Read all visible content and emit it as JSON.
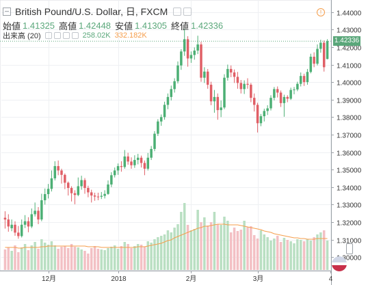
{
  "header": {
    "title": "British Pound/U.S. Dollar, 日, FXCM",
    "ohlc": [
      {
        "label": "始値",
        "value": "1.41325"
      },
      {
        "label": "高値",
        "value": "1.42448"
      },
      {
        "label": "安値",
        "value": "1.41305"
      },
      {
        "label": "終値",
        "value": "1.42336"
      }
    ],
    "volume_label": "出来高 (20)",
    "volume_value": "258.02K",
    "volume_ma_value": "332.182K",
    "alert_icon": "exclamation-circle-icon"
  },
  "last_price_label": "1.42336",
  "colors": {
    "up": "#4caf74",
    "down": "#e05f66",
    "vol_up": "#b9dfc2",
    "vol_down": "#f3c0c4",
    "vol_ma": "#f59d4a",
    "price_line": "#5aa77a",
    "grid": "#eef0f3",
    "axis_text": "#333333",
    "label_green": "#5aa77a",
    "label_orange": "#f59d4a"
  },
  "chart_data": {
    "type": "candlestick",
    "title": "British Pound/U.S. Dollar, 日, FXCM",
    "ylim": [
      1.295,
      1.443
    ],
    "y_ticks": [
      "1.44000",
      "1.43000",
      "1.42000",
      "1.41000",
      "1.40000",
      "1.39000",
      "1.38000",
      "1.37000",
      "1.36000",
      "1.35000",
      "1.34000",
      "1.33000",
      "1.32000",
      "1.31000",
      "1.30000"
    ],
    "y_tick_values": [
      1.44,
      1.43,
      1.42,
      1.41,
      1.4,
      1.39,
      1.38,
      1.37,
      1.36,
      1.35,
      1.34,
      1.33,
      1.32,
      1.31,
      1.3
    ],
    "x_labels": [
      {
        "index": 13,
        "text": "12月"
      },
      {
        "index": 34,
        "text": "2018"
      },
      {
        "index": 56,
        "text": "2月"
      },
      {
        "index": 76,
        "text": "3月"
      },
      {
        "index": 98,
        "text": "4"
      }
    ],
    "closes": [
      1.3215,
      1.3175,
      1.3185,
      1.314,
      1.312,
      1.3185,
      1.3205,
      1.3175,
      1.3245,
      1.3265,
      1.3215,
      1.3325,
      1.336,
      1.339,
      1.345,
      1.352,
      1.3495,
      1.347,
      1.3425,
      1.3395,
      1.3365,
      1.3355,
      1.3405,
      1.344,
      1.3395,
      1.337,
      1.3352,
      1.3346,
      1.3345,
      1.335,
      1.3361,
      1.3415,
      1.3468,
      1.3495,
      1.352,
      1.3515,
      1.3575,
      1.3546,
      1.3525,
      1.3555,
      1.3568,
      1.3538,
      1.3505,
      1.3568,
      1.3618,
      1.3705,
      1.3775,
      1.38,
      1.387,
      1.3915,
      1.396,
      1.4005,
      1.4095,
      1.4175,
      1.4245,
      1.4135,
      1.4155,
      1.418,
      1.4215,
      1.4025,
      1.406,
      1.3985,
      1.389,
      1.3915,
      1.384,
      1.3855,
      1.4025,
      1.4075,
      1.4055,
      1.403,
      1.3995,
      1.396,
      1.399,
      1.3985,
      1.391,
      1.387,
      1.3765,
      1.3805,
      1.3835,
      1.385,
      1.391,
      1.396,
      1.394,
      1.388,
      1.3915,
      1.3905,
      1.3955,
      1.3958,
      1.399,
      1.4035,
      1.4,
      1.4058,
      1.4145,
      1.4105,
      1.419,
      1.4225,
      1.4085,
      1.4234
    ],
    "candles": [
      {
        "o": 1.3225,
        "h": 1.3262,
        "l": 1.3163,
        "c": 1.3215
      },
      {
        "o": 1.3215,
        "h": 1.3245,
        "l": 1.3145,
        "c": 1.3175
      },
      {
        "o": 1.3165,
        "h": 1.3215,
        "l": 1.3148,
        "c": 1.3185
      },
      {
        "o": 1.3185,
        "h": 1.3205,
        "l": 1.3122,
        "c": 1.314
      },
      {
        "o": 1.314,
        "h": 1.3178,
        "l": 1.3105,
        "c": 1.312
      },
      {
        "o": 1.312,
        "h": 1.3215,
        "l": 1.3112,
        "c": 1.3185
      },
      {
        "o": 1.3185,
        "h": 1.324,
        "l": 1.3166,
        "c": 1.3205
      },
      {
        "o": 1.3205,
        "h": 1.3228,
        "l": 1.3142,
        "c": 1.3175
      },
      {
        "o": 1.3175,
        "h": 1.3278,
        "l": 1.3166,
        "c": 1.3245
      },
      {
        "o": 1.3245,
        "h": 1.3312,
        "l": 1.3232,
        "c": 1.3265
      },
      {
        "o": 1.3265,
        "h": 1.3286,
        "l": 1.3188,
        "c": 1.3215
      },
      {
        "o": 1.3215,
        "h": 1.3362,
        "l": 1.3205,
        "c": 1.3325
      },
      {
        "o": 1.3325,
        "h": 1.3392,
        "l": 1.33,
        "c": 1.336
      },
      {
        "o": 1.336,
        "h": 1.3418,
        "l": 1.3335,
        "c": 1.339
      },
      {
        "o": 1.339,
        "h": 1.3495,
        "l": 1.3375,
        "c": 1.345
      },
      {
        "o": 1.345,
        "h": 1.3548,
        "l": 1.3438,
        "c": 1.352
      },
      {
        "o": 1.352,
        "h": 1.3552,
        "l": 1.3468,
        "c": 1.3495
      },
      {
        "o": 1.3495,
        "h": 1.3505,
        "l": 1.342,
        "c": 1.347
      },
      {
        "o": 1.347,
        "h": 1.3478,
        "l": 1.3388,
        "c": 1.3425
      },
      {
        "o": 1.3425,
        "h": 1.3432,
        "l": 1.3352,
        "c": 1.3395
      },
      {
        "o": 1.3395,
        "h": 1.3405,
        "l": 1.3318,
        "c": 1.3365
      },
      {
        "o": 1.3365,
        "h": 1.3382,
        "l": 1.3302,
        "c": 1.3355
      },
      {
        "o": 1.3355,
        "h": 1.3455,
        "l": 1.3348,
        "c": 1.3405
      },
      {
        "o": 1.3405,
        "h": 1.3465,
        "l": 1.3385,
        "c": 1.344
      },
      {
        "o": 1.344,
        "h": 1.3452,
        "l": 1.3362,
        "c": 1.3395
      },
      {
        "o": 1.3395,
        "h": 1.3408,
        "l": 1.3342,
        "c": 1.337
      },
      {
        "o": 1.337,
        "h": 1.3385,
        "l": 1.3312,
        "c": 1.3352
      },
      {
        "o": 1.3352,
        "h": 1.3368,
        "l": 1.3322,
        "c": 1.3346
      },
      {
        "o": 1.3346,
        "h": 1.3368,
        "l": 1.3325,
        "c": 1.3345
      },
      {
        "o": 1.3345,
        "h": 1.3372,
        "l": 1.3332,
        "c": 1.335
      },
      {
        "o": 1.335,
        "h": 1.3382,
        "l": 1.3335,
        "c": 1.3361
      },
      {
        "o": 1.3361,
        "h": 1.3438,
        "l": 1.3356,
        "c": 1.3415
      },
      {
        "o": 1.3415,
        "h": 1.3485,
        "l": 1.34,
        "c": 1.3468
      },
      {
        "o": 1.3468,
        "h": 1.3512,
        "l": 1.3455,
        "c": 1.3495
      },
      {
        "o": 1.3495,
        "h": 1.3535,
        "l": 1.347,
        "c": 1.352
      },
      {
        "o": 1.352,
        "h": 1.3548,
        "l": 1.3488,
        "c": 1.3515
      },
      {
        "o": 1.3515,
        "h": 1.3612,
        "l": 1.3505,
        "c": 1.3575
      },
      {
        "o": 1.3575,
        "h": 1.3596,
        "l": 1.3528,
        "c": 1.3546
      },
      {
        "o": 1.3546,
        "h": 1.357,
        "l": 1.3505,
        "c": 1.3525
      },
      {
        "o": 1.3525,
        "h": 1.3582,
        "l": 1.351,
        "c": 1.3555
      },
      {
        "o": 1.3555,
        "h": 1.359,
        "l": 1.353,
        "c": 1.3568
      },
      {
        "o": 1.3568,
        "h": 1.358,
        "l": 1.3512,
        "c": 1.3538
      },
      {
        "o": 1.3538,
        "h": 1.3552,
        "l": 1.3468,
        "c": 1.3505
      },
      {
        "o": 1.3505,
        "h": 1.3595,
        "l": 1.3495,
        "c": 1.3568
      },
      {
        "o": 1.3568,
        "h": 1.3635,
        "l": 1.3555,
        "c": 1.3618
      },
      {
        "o": 1.3618,
        "h": 1.372,
        "l": 1.3605,
        "c": 1.3705
      },
      {
        "o": 1.3705,
        "h": 1.3788,
        "l": 1.3692,
        "c": 1.3775
      },
      {
        "o": 1.3775,
        "h": 1.3815,
        "l": 1.375,
        "c": 1.38
      },
      {
        "o": 1.38,
        "h": 1.3888,
        "l": 1.3785,
        "c": 1.387
      },
      {
        "o": 1.387,
        "h": 1.3935,
        "l": 1.3845,
        "c": 1.3915
      },
      {
        "o": 1.3915,
        "h": 1.398,
        "l": 1.3895,
        "c": 1.396
      },
      {
        "o": 1.396,
        "h": 1.4022,
        "l": 1.394,
        "c": 1.4005
      },
      {
        "o": 1.4005,
        "h": 1.4118,
        "l": 1.3992,
        "c": 1.4095
      },
      {
        "o": 1.4095,
        "h": 1.4188,
        "l": 1.407,
        "c": 1.4175
      },
      {
        "o": 1.4175,
        "h": 1.4305,
        "l": 1.415,
        "c": 1.4245
      },
      {
        "o": 1.4245,
        "h": 1.4262,
        "l": 1.4088,
        "c": 1.4135
      },
      {
        "o": 1.4135,
        "h": 1.4175,
        "l": 1.411,
        "c": 1.4155
      },
      {
        "o": 1.4155,
        "h": 1.4198,
        "l": 1.4128,
        "c": 1.418
      },
      {
        "o": 1.418,
        "h": 1.4265,
        "l": 1.416,
        "c": 1.4215
      },
      {
        "o": 1.4215,
        "h": 1.423,
        "l": 1.4002,
        "c": 1.4025
      },
      {
        "o": 1.4025,
        "h": 1.4085,
        "l": 1.3995,
        "c": 1.406
      },
      {
        "o": 1.406,
        "h": 1.4075,
        "l": 1.3962,
        "c": 1.3985
      },
      {
        "o": 1.3985,
        "h": 1.4002,
        "l": 1.3868,
        "c": 1.389
      },
      {
        "o": 1.389,
        "h": 1.3955,
        "l": 1.3825,
        "c": 1.3915
      },
      {
        "o": 1.3915,
        "h": 1.3935,
        "l": 1.3785,
        "c": 1.384
      },
      {
        "o": 1.384,
        "h": 1.3895,
        "l": 1.38,
        "c": 1.3855
      },
      {
        "o": 1.3855,
        "h": 1.4045,
        "l": 1.3845,
        "c": 1.4025
      },
      {
        "o": 1.4025,
        "h": 1.41,
        "l": 1.4008,
        "c": 1.4075
      },
      {
        "o": 1.4075,
        "h": 1.4095,
        "l": 1.4028,
        "c": 1.4055
      },
      {
        "o": 1.4055,
        "h": 1.4072,
        "l": 1.3995,
        "c": 1.403
      },
      {
        "o": 1.403,
        "h": 1.4058,
        "l": 1.3962,
        "c": 1.3995
      },
      {
        "o": 1.3995,
        "h": 1.4012,
        "l": 1.3935,
        "c": 1.396
      },
      {
        "o": 1.396,
        "h": 1.401,
        "l": 1.3932,
        "c": 1.399
      },
      {
        "o": 1.399,
        "h": 1.4022,
        "l": 1.3962,
        "c": 1.3985
      },
      {
        "o": 1.3985,
        "h": 1.3995,
        "l": 1.3885,
        "c": 1.391
      },
      {
        "o": 1.391,
        "h": 1.3935,
        "l": 1.3832,
        "c": 1.387
      },
      {
        "o": 1.387,
        "h": 1.3882,
        "l": 1.3712,
        "c": 1.3765
      },
      {
        "o": 1.3765,
        "h": 1.3818,
        "l": 1.3748,
        "c": 1.3805
      },
      {
        "o": 1.3805,
        "h": 1.3848,
        "l": 1.3775,
        "c": 1.3835
      },
      {
        "o": 1.3835,
        "h": 1.3868,
        "l": 1.3812,
        "c": 1.385
      },
      {
        "o": 1.385,
        "h": 1.3925,
        "l": 1.3838,
        "c": 1.391
      },
      {
        "o": 1.391,
        "h": 1.3972,
        "l": 1.3895,
        "c": 1.396
      },
      {
        "o": 1.396,
        "h": 1.3975,
        "l": 1.3912,
        "c": 1.394
      },
      {
        "o": 1.394,
        "h": 1.3952,
        "l": 1.3858,
        "c": 1.388
      },
      {
        "o": 1.388,
        "h": 1.3928,
        "l": 1.3802,
        "c": 1.3915
      },
      {
        "o": 1.3915,
        "h": 1.3925,
        "l": 1.3885,
        "c": 1.3905
      },
      {
        "o": 1.3905,
        "h": 1.3968,
        "l": 1.3898,
        "c": 1.3955
      },
      {
        "o": 1.3955,
        "h": 1.3972,
        "l": 1.393,
        "c": 1.3958
      },
      {
        "o": 1.3958,
        "h": 1.4002,
        "l": 1.3948,
        "c": 1.399
      },
      {
        "o": 1.399,
        "h": 1.4055,
        "l": 1.3975,
        "c": 1.4035
      },
      {
        "o": 1.4035,
        "h": 1.4048,
        "l": 1.3978,
        "c": 1.4
      },
      {
        "o": 1.4,
        "h": 1.4075,
        "l": 1.3985,
        "c": 1.4058
      },
      {
        "o": 1.4058,
        "h": 1.4162,
        "l": 1.405,
        "c": 1.4145
      },
      {
        "o": 1.4145,
        "h": 1.417,
        "l": 1.4085,
        "c": 1.4105
      },
      {
        "o": 1.4105,
        "h": 1.4215,
        "l": 1.4095,
        "c": 1.419
      },
      {
        "o": 1.419,
        "h": 1.4242,
        "l": 1.4168,
        "c": 1.4225
      },
      {
        "o": 1.4225,
        "h": 1.4238,
        "l": 1.406,
        "c": 1.4085
      },
      {
        "o": 1.4132,
        "h": 1.4245,
        "l": 1.413,
        "c": 1.4234
      }
    ],
    "volume_scale_max": 1.0,
    "volumes": [
      0.3,
      0.33,
      0.28,
      0.36,
      0.26,
      0.33,
      0.38,
      0.29,
      0.36,
      0.41,
      0.31,
      0.45,
      0.4,
      0.37,
      0.42,
      0.36,
      0.31,
      0.34,
      0.35,
      0.32,
      0.38,
      0.34,
      0.33,
      0.3,
      0.28,
      0.24,
      0.32,
      0.35,
      0.31,
      0.3,
      0.29,
      0.32,
      0.34,
      0.36,
      0.31,
      0.35,
      0.41,
      0.38,
      0.32,
      0.35,
      0.38,
      0.37,
      0.34,
      0.42,
      0.4,
      0.45,
      0.48,
      0.5,
      0.52,
      0.58,
      0.55,
      0.62,
      0.67,
      0.85,
      0.98,
      0.66,
      0.58,
      0.6,
      0.88,
      0.7,
      0.77,
      0.65,
      0.7,
      0.85,
      0.67,
      0.66,
      0.78,
      0.72,
      0.55,
      0.62,
      0.57,
      0.59,
      0.72,
      0.63,
      0.64,
      0.51,
      0.46,
      0.58,
      0.52,
      0.48,
      0.43,
      0.46,
      0.5,
      0.41,
      0.47,
      0.44,
      0.42,
      0.39,
      0.45,
      0.44,
      0.42,
      0.45,
      0.43,
      0.48,
      0.52,
      0.55,
      0.58,
      0.43
    ],
    "volume_ma": [
      0.33,
      0.33,
      0.33,
      0.33,
      0.32,
      0.32,
      0.33,
      0.33,
      0.33,
      0.33,
      0.33,
      0.34,
      0.34,
      0.35,
      0.35,
      0.35,
      0.35,
      0.35,
      0.35,
      0.35,
      0.35,
      0.35,
      0.35,
      0.35,
      0.35,
      0.34,
      0.34,
      0.34,
      0.34,
      0.33,
      0.33,
      0.33,
      0.33,
      0.33,
      0.33,
      0.33,
      0.33,
      0.33,
      0.33,
      0.33,
      0.34,
      0.34,
      0.34,
      0.35,
      0.36,
      0.37,
      0.38,
      0.39,
      0.41,
      0.43,
      0.44,
      0.47,
      0.49,
      0.51,
      0.53,
      0.55,
      0.57,
      0.59,
      0.61,
      0.62,
      0.64,
      0.64,
      0.65,
      0.66,
      0.67,
      0.67,
      0.67,
      0.66,
      0.66,
      0.66,
      0.66,
      0.65,
      0.64,
      0.63,
      0.62,
      0.61,
      0.6,
      0.59,
      0.57,
      0.56,
      0.55,
      0.53,
      0.52,
      0.51,
      0.5,
      0.49,
      0.48,
      0.47,
      0.47,
      0.46,
      0.46,
      0.45,
      0.45,
      0.45,
      0.46,
      0.46,
      0.46,
      0.46
    ]
  }
}
